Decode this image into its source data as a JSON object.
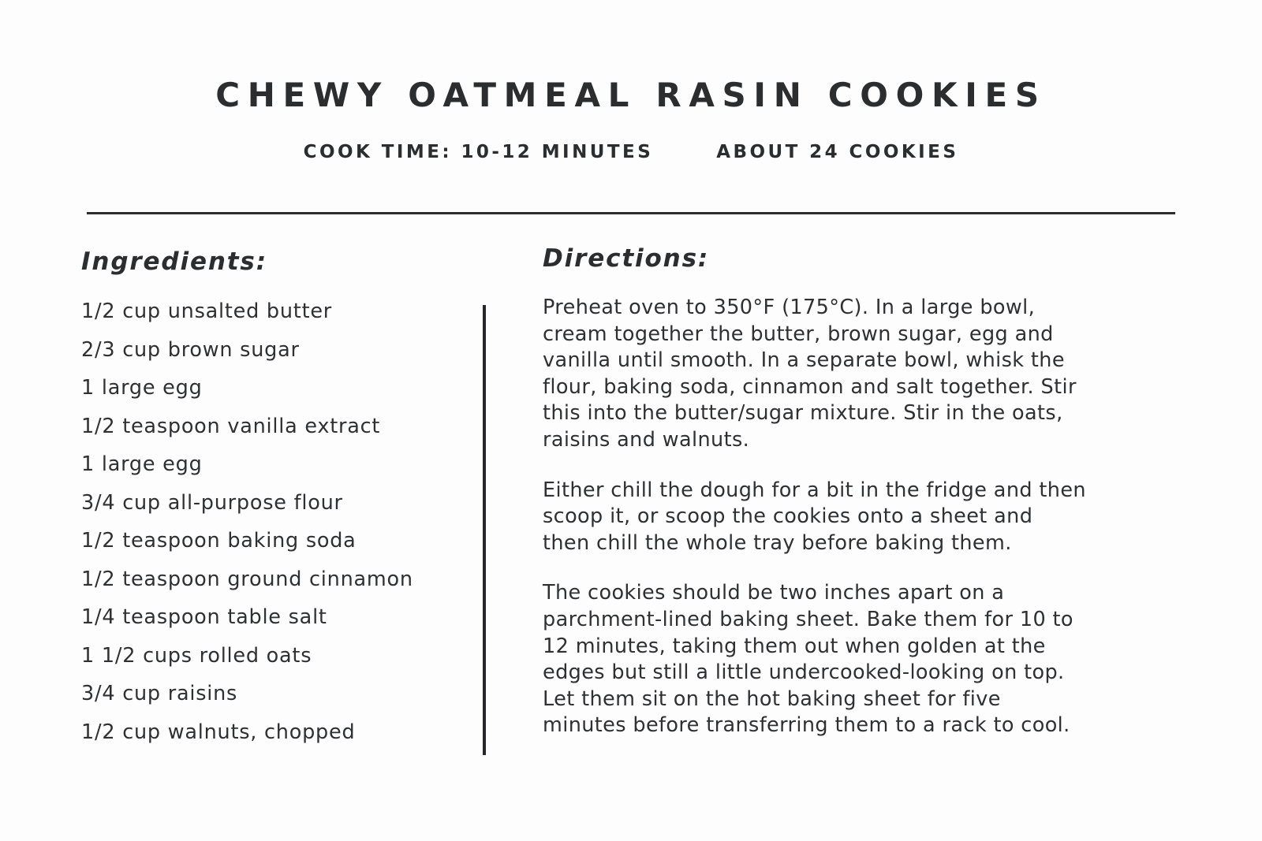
{
  "page": {
    "title": "CHEWY OATMEAL RASIN COOKIES",
    "meta": {
      "cook_time": "COOK TIME: 10-12 MINUTES",
      "yield": "ABOUT 24 COOKIES"
    }
  },
  "colors": {
    "text": "#2f3032",
    "background": "#fdfdfd",
    "rule": "#2c2d2e"
  },
  "ingredients": {
    "heading": "Ingredients:",
    "items": [
      "1/2 cup unsalted butter",
      "2/3 cup brown sugar",
      "1 large egg",
      "1/2 teaspoon vanilla extract",
      "1 large egg",
      "3/4 cup all-purpose flour",
      "1/2 teaspoon baking soda",
      "1/2 teaspoon ground cinnamon",
      "1/4 teaspoon table salt",
      "1 1/2 cups rolled oats",
      "3/4 cup raisins",
      "1/2 cup walnuts, chopped"
    ]
  },
  "directions": {
    "heading": "Directions:",
    "paragraphs": {
      "p1": "Preheat oven to 350°F (175°C). In a large bowl,\ncream together the butter, brown sugar, egg and\nvanilla until smooth. In a separate bowl, whisk the\nflour, baking soda, cinnamon and salt together. Stir\nthis into the butter/sugar mixture. Stir in the oats,\nraisins and walnuts.",
      "p2": "Either chill the dough for a bit in the fridge and then\nscoop it, or scoop the cookies onto a sheet and\nthen chill the whole tray before baking them.",
      "p3": "The cookies should be two inches apart on a\nparchment-lined baking sheet. Bake them for 10 to\n12 minutes, taking them out when golden at the\nedges but still a little undercooked-looking on top.\nLet them sit on the hot baking sheet for five\nminutes before transferring them to a rack to cool."
    }
  }
}
